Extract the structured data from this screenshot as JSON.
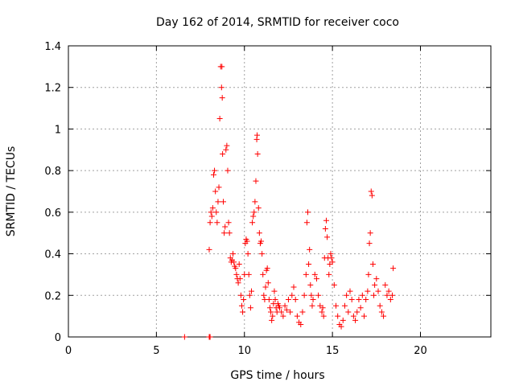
{
  "chart_data": {
    "type": "scatter",
    "title": "Day 162 of 2014, SRMTID for receiver coco",
    "xlabel": "GPS time / hours",
    "ylabel": "SRMTID / TECUs",
    "xlim": [
      0,
      24
    ],
    "ylim": [
      0,
      1.4
    ],
    "xticks": [
      0,
      5,
      10,
      15,
      20
    ],
    "xtick_labels": [
      "0",
      "5",
      "10",
      "15",
      "20"
    ],
    "yticks": [
      0,
      0.2,
      0.4,
      0.6,
      0.8,
      1,
      1.2,
      1.4
    ],
    "ytick_labels": [
      "0",
      "0.2",
      "0.4",
      "0.6",
      "0.8",
      "1",
      "1.2",
      "1.4"
    ],
    "grid": true,
    "marker": "+",
    "color": "#ff0000",
    "series": [
      {
        "name": "coco",
        "x": [
          6.6,
          8.0,
          8.02,
          8.05,
          8.0,
          8.05,
          8.1,
          8.15,
          8.2,
          8.25,
          8.3,
          8.35,
          8.4,
          8.45,
          8.5,
          8.55,
          8.6,
          8.65,
          8.7,
          8.72,
          8.74,
          8.76,
          8.8,
          8.85,
          8.9,
          8.95,
          9.0,
          9.05,
          9.1,
          9.15,
          9.2,
          9.25,
          9.3,
          9.35,
          9.4,
          9.45,
          9.5,
          9.55,
          9.6,
          9.65,
          9.7,
          9.75,
          9.8,
          9.85,
          9.9,
          9.95,
          10.0,
          10.05,
          10.1,
          10.15,
          10.2,
          10.25,
          10.3,
          10.35,
          10.4,
          10.45,
          10.5,
          10.55,
          10.6,
          10.65,
          10.7,
          10.72,
          10.75,
          10.8,
          10.85,
          10.9,
          10.95,
          11.0,
          11.05,
          11.1,
          11.15,
          11.2,
          11.25,
          11.3,
          11.35,
          11.4,
          11.45,
          11.5,
          11.55,
          11.6,
          11.65,
          11.7,
          11.75,
          11.8,
          11.85,
          11.9,
          11.95,
          12.0,
          12.1,
          12.2,
          12.3,
          12.4,
          12.5,
          12.6,
          12.7,
          12.8,
          12.9,
          13.0,
          13.1,
          13.2,
          13.3,
          13.4,
          13.5,
          13.55,
          13.6,
          13.65,
          13.7,
          13.75,
          13.8,
          13.85,
          13.9,
          14.0,
          14.1,
          14.2,
          14.3,
          14.4,
          14.45,
          14.5,
          14.55,
          14.6,
          14.65,
          14.7,
          14.75,
          14.8,
          14.85,
          14.9,
          14.95,
          15.0,
          15.1,
          15.2,
          15.3,
          15.4,
          15.5,
          15.6,
          15.7,
          15.8,
          15.9,
          16.0,
          16.1,
          16.2,
          16.3,
          16.4,
          16.5,
          16.6,
          16.7,
          16.8,
          16.9,
          17.0,
          17.05,
          17.1,
          17.15,
          17.2,
          17.25,
          17.3,
          17.35,
          17.4,
          17.5,
          17.6,
          17.7,
          17.8,
          17.9,
          18.0,
          18.1,
          18.2,
          18.3,
          18.4,
          18.45
        ],
        "y": [
          0.0,
          0.0,
          0.0,
          0.0,
          0.42,
          0.55,
          0.6,
          0.58,
          0.62,
          0.78,
          0.8,
          0.7,
          0.6,
          0.55,
          0.65,
          0.72,
          1.05,
          1.3,
          1.2,
          1.3,
          1.15,
          0.88,
          0.65,
          0.5,
          0.53,
          0.9,
          0.92,
          0.8,
          0.55,
          0.5,
          0.38,
          0.36,
          0.37,
          0.4,
          0.36,
          0.34,
          0.33,
          0.3,
          0.28,
          0.26,
          0.35,
          0.28,
          0.2,
          0.15,
          0.12,
          0.18,
          0.3,
          0.45,
          0.47,
          0.46,
          0.4,
          0.3,
          0.2,
          0.14,
          0.22,
          0.55,
          0.58,
          0.6,
          0.65,
          0.75,
          0.95,
          0.97,
          0.88,
          0.62,
          0.5,
          0.45,
          0.46,
          0.4,
          0.3,
          0.2,
          0.18,
          0.24,
          0.32,
          0.33,
          0.26,
          0.18,
          0.14,
          0.12,
          0.08,
          0.1,
          0.16,
          0.22,
          0.18,
          0.14,
          0.12,
          0.16,
          0.15,
          0.14,
          0.12,
          0.1,
          0.15,
          0.13,
          0.18,
          0.12,
          0.2,
          0.24,
          0.18,
          0.1,
          0.07,
          0.06,
          0.12,
          0.2,
          0.3,
          0.55,
          0.6,
          0.35,
          0.42,
          0.25,
          0.2,
          0.15,
          0.18,
          0.3,
          0.28,
          0.2,
          0.15,
          0.12,
          0.14,
          0.1,
          0.38,
          0.52,
          0.56,
          0.48,
          0.38,
          0.3,
          0.35,
          0.4,
          0.38,
          0.36,
          0.25,
          0.15,
          0.1,
          0.06,
          0.05,
          0.08,
          0.15,
          0.2,
          0.12,
          0.22,
          0.18,
          0.1,
          0.08,
          0.12,
          0.18,
          0.14,
          0.2,
          0.1,
          0.18,
          0.22,
          0.3,
          0.45,
          0.5,
          0.7,
          0.68,
          0.35,
          0.2,
          0.25,
          0.28,
          0.22,
          0.15,
          0.12,
          0.1,
          0.25,
          0.2,
          0.22,
          0.18,
          0.2,
          0.33
        ]
      }
    ]
  }
}
